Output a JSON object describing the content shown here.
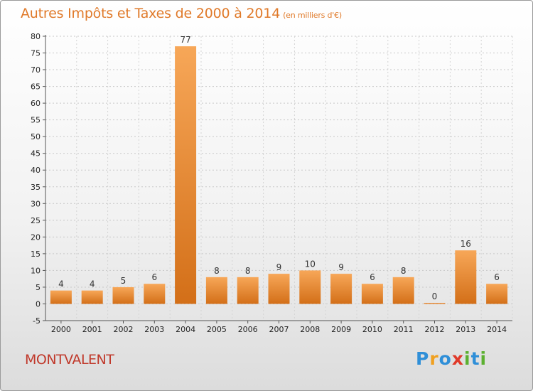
{
  "chart_data": {
    "type": "bar",
    "title": "Autres Impôts et Taxes de 2000 à 2014",
    "subtitle": "(en milliers d'€)",
    "categories": [
      "2000",
      "2001",
      "2002",
      "2003",
      "2004",
      "2005",
      "2006",
      "2007",
      "2008",
      "2009",
      "2010",
      "2011",
      "2012",
      "2013",
      "2014"
    ],
    "values": [
      4,
      4,
      5,
      6,
      77,
      8,
      8,
      9,
      10,
      9,
      6,
      8,
      0,
      16,
      6
    ],
    "data_labels": [
      "4",
      "4",
      "5",
      "6",
      "77",
      "8",
      "8",
      "9",
      "10",
      "9",
      "6",
      "8",
      "0",
      "16",
      "6"
    ],
    "ylim": [
      -5,
      80
    ],
    "yticks": [
      -5,
      0,
      5,
      10,
      15,
      20,
      25,
      30,
      35,
      40,
      45,
      50,
      55,
      60,
      65,
      70,
      75,
      80
    ],
    "grid": "horizontal dashed",
    "bar_color_top": "#f7a758",
    "bar_color_bottom": "#d36f18"
  },
  "footer": {
    "commune": "MONTVALENT",
    "brand_letters": [
      {
        "ch": "P",
        "color": "#2f8fd8"
      },
      {
        "ch": "r",
        "color": "#f0a020"
      },
      {
        "ch": "o",
        "color": "#2f8fd8"
      },
      {
        "ch": "x",
        "color": "#e03a2a"
      },
      {
        "ch": "i",
        "color": "#5cb030"
      },
      {
        "ch": "t",
        "color": "#2f8fd8"
      },
      {
        "ch": "i",
        "color": "#5cb030"
      }
    ]
  }
}
